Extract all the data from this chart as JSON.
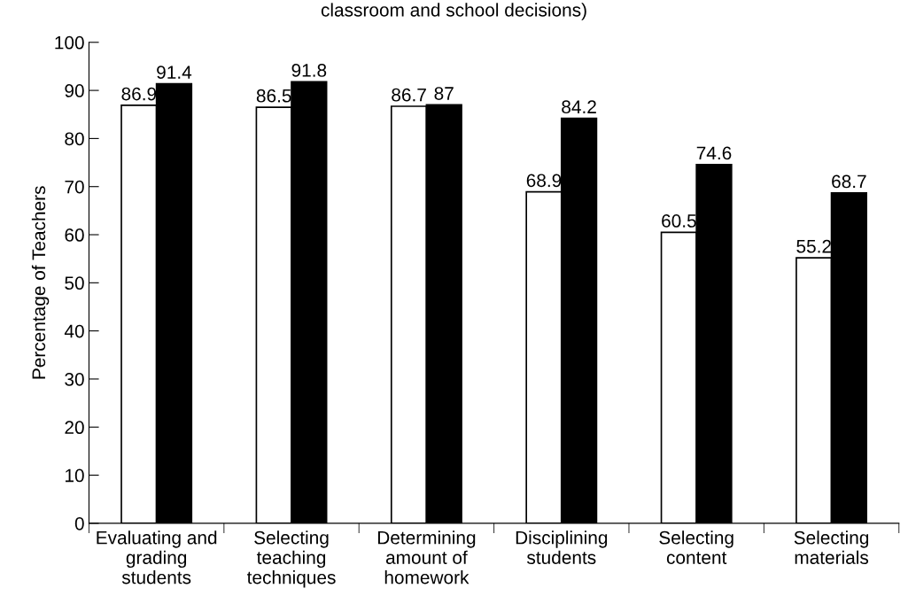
{
  "chart_data": {
    "type": "bar",
    "title": "classroom and school decisions)",
    "ylabel": "Percentage of Teachers",
    "categories": [
      "Evaluating and\ngrading\nstudents",
      "Selecting\nteaching\ntechniques",
      "Determining\namount of\nhomework",
      "Disciplining\nstudents",
      "Selecting\ncontent",
      "Selecting\nmaterials"
    ],
    "series": [
      {
        "color": "#ffffff",
        "values": [
          86.9,
          86.5,
          86.7,
          68.9,
          60.5,
          55.2
        ]
      },
      {
        "color": "#000000",
        "values": [
          91.4,
          91.8,
          87,
          84.2,
          74.6,
          68.7
        ]
      }
    ],
    "ylim": [
      0,
      100
    ],
    "yticks": [
      0,
      10,
      20,
      30,
      40,
      50,
      60,
      70,
      80,
      90,
      100
    ],
    "grid": false,
    "legend": false,
    "data_labels": true
  }
}
